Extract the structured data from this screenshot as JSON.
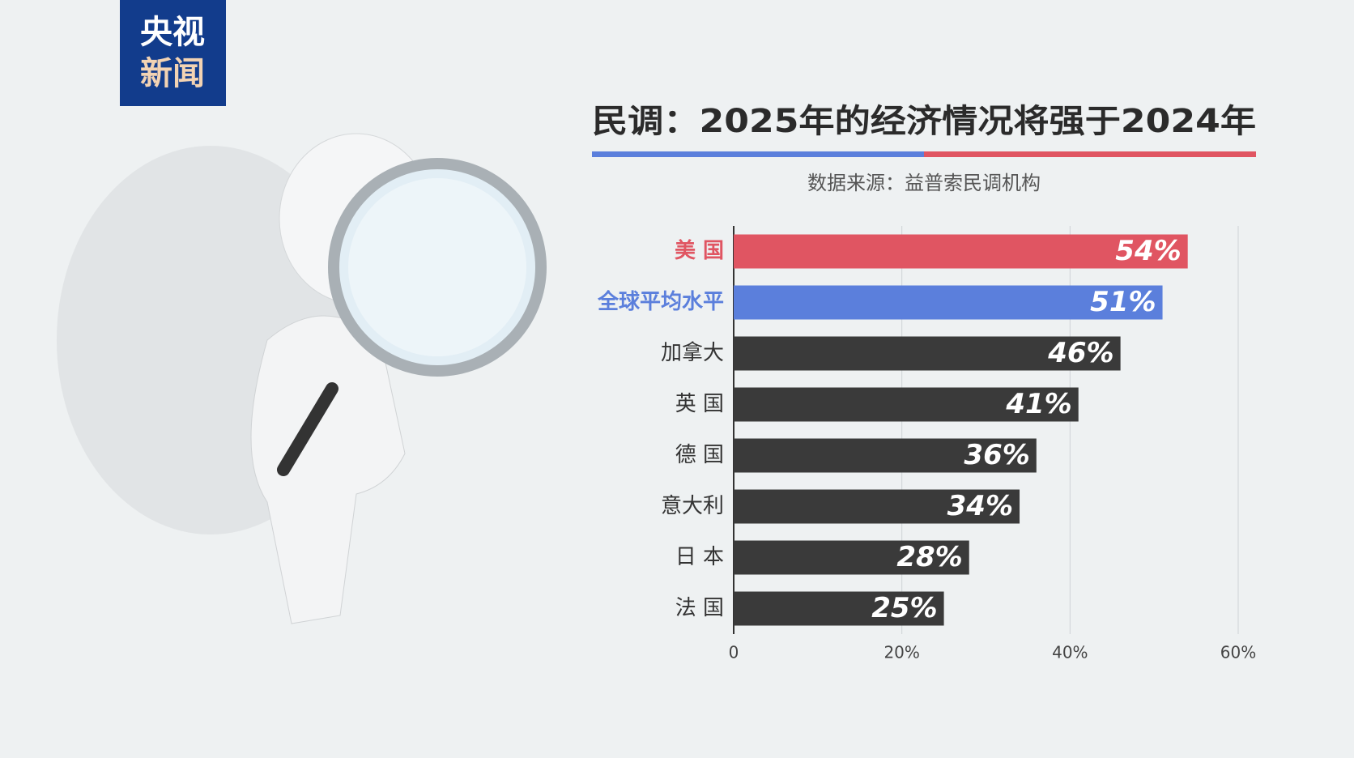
{
  "logo": {
    "lines": [
      "央视",
      "新闻"
    ]
  },
  "chart_data": {
    "type": "bar",
    "orientation": "horizontal",
    "title": "民调：2025年的经济情况将强于2024年",
    "subtitle": "数据来源：益普索民调机构",
    "categories": [
      "美 国",
      "全球平均水平",
      "加拿大",
      "英 国",
      "德 国",
      "意大利",
      "日 本",
      "法 国"
    ],
    "values": [
      54,
      51,
      46,
      41,
      36,
      34,
      28,
      25
    ],
    "value_labels": [
      "54%",
      "51%",
      "46%",
      "41%",
      "36%",
      "34%",
      "28%",
      "25%"
    ],
    "colors": [
      "#e05562",
      "#5b7fdc",
      "#3a3a3a",
      "#3a3a3a",
      "#3a3a3a",
      "#3a3a3a",
      "#3a3a3a",
      "#3a3a3a"
    ],
    "xlim": [
      0,
      60
    ],
    "xticks": [
      0,
      {
        "value": 20,
        "label": "20%"
      },
      {
        "value": 40,
        "label": "40%"
      },
      {
        "value": 60,
        "label": "60%"
      }
    ],
    "grid": true
  }
}
